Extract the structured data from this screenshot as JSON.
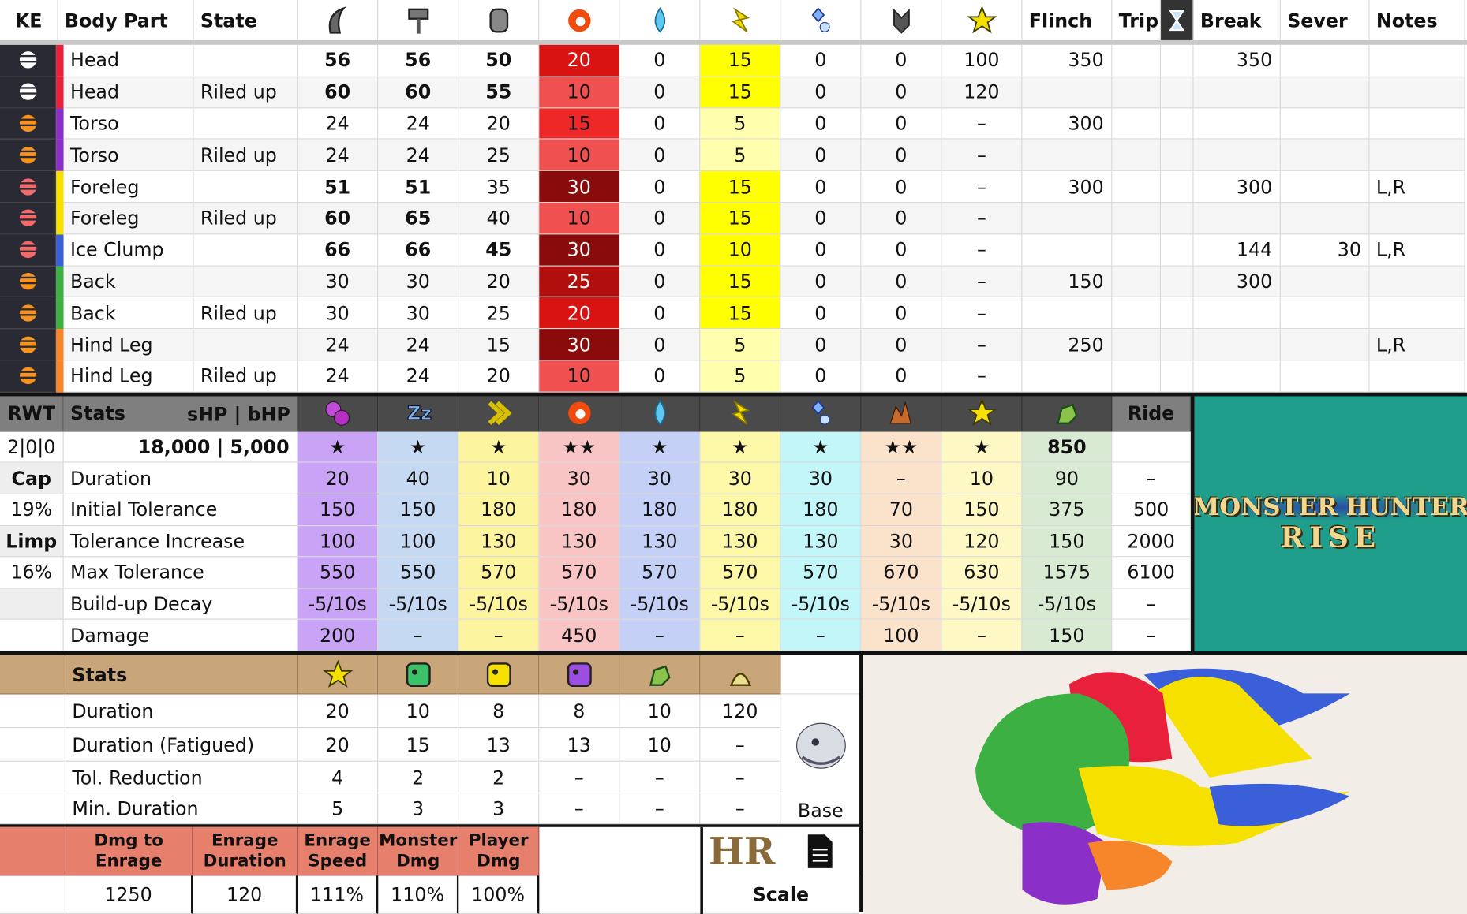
{
  "header": {
    "ke": "KE",
    "body_part": "Body Part",
    "state": "State",
    "flinch": "Flinch",
    "trip": "Trip",
    "break": "Break",
    "sever": "Sever",
    "notes": "Notes"
  },
  "hitzones": {
    "rows": [
      {
        "part": "Head",
        "state": null,
        "color": "#e8203c",
        "ke_color": "#ffffff",
        "hz": [
          56,
          56,
          50,
          20,
          0,
          15,
          0,
          0,
          100
        ],
        "flinch": 350,
        "break": 350,
        "sever": null,
        "notes": null
      },
      {
        "part": "Head",
        "state": "Riled up",
        "color": "#e8203c",
        "ke_color": "#ffffff",
        "hz": [
          60,
          60,
          55,
          10,
          0,
          15,
          0,
          0,
          120
        ],
        "flinch": null,
        "break": null,
        "sever": null,
        "notes": null
      },
      {
        "part": "Torso",
        "state": null,
        "color": "#8b2fc9",
        "ke_color": "#f7931e",
        "hz": [
          24,
          24,
          20,
          15,
          0,
          5,
          0,
          0,
          "–"
        ],
        "flinch": 300,
        "break": null,
        "sever": null,
        "notes": null
      },
      {
        "part": "Torso",
        "state": "Riled up",
        "color": "#8b2fc9",
        "ke_color": "#f7931e",
        "hz": [
          24,
          24,
          25,
          10,
          0,
          5,
          0,
          0,
          "–"
        ],
        "flinch": null,
        "break": null,
        "sever": null,
        "notes": null
      },
      {
        "part": "Foreleg",
        "state": null,
        "color": "#f5e000",
        "ke_color": "#f26a6a",
        "hz": [
          51,
          51,
          35,
          30,
          0,
          15,
          0,
          0,
          "–"
        ],
        "flinch": 300,
        "break": 300,
        "sever": null,
        "notes": "L,R"
      },
      {
        "part": "Foreleg",
        "state": "Riled up",
        "color": "#f5e000",
        "ke_color": "#f26a6a",
        "hz": [
          60,
          65,
          40,
          10,
          0,
          15,
          0,
          0,
          "–"
        ],
        "flinch": null,
        "break": null,
        "sever": null,
        "notes": null
      },
      {
        "part": "Ice Clump",
        "state": null,
        "color": "#3a5fd9",
        "ke_color": "#f26a6a",
        "hz": [
          66,
          66,
          45,
          30,
          0,
          10,
          0,
          0,
          "–"
        ],
        "flinch": null,
        "break": 144,
        "sever": 30,
        "notes": "L,R"
      },
      {
        "part": "Back",
        "state": null,
        "color": "#3cb043",
        "ke_color": "#f7931e",
        "hz": [
          30,
          30,
          20,
          25,
          0,
          15,
          0,
          0,
          "–"
        ],
        "flinch": 150,
        "break": 300,
        "sever": null,
        "notes": null
      },
      {
        "part": "Back",
        "state": "Riled up",
        "color": "#3cb043",
        "ke_color": "#f7931e",
        "hz": [
          30,
          30,
          25,
          20,
          0,
          15,
          0,
          0,
          "–"
        ],
        "flinch": null,
        "break": null,
        "sever": null,
        "notes": null
      },
      {
        "part": "Hind Leg",
        "state": null,
        "color": "#f7862a",
        "ke_color": "#f7931e",
        "hz": [
          24,
          24,
          15,
          30,
          0,
          5,
          0,
          0,
          "–"
        ],
        "flinch": 250,
        "break": null,
        "sever": null,
        "notes": "L,R"
      },
      {
        "part": "Hind Leg",
        "state": "Riled up",
        "color": "#f7862a",
        "ke_color": "#f7931e",
        "hz": [
          24,
          24,
          20,
          10,
          0,
          5,
          0,
          0,
          "–"
        ],
        "flinch": null,
        "break": null,
        "sever": null,
        "notes": null
      }
    ]
  },
  "ailments": {
    "rwt": "RWT",
    "stats": "Stats",
    "hp_header": "sHP  |  bHP",
    "ride": "Ride",
    "column_colors": [
      "#c9a3f5",
      "#c6d9f3",
      "#fdf4a0",
      "#f8c4c4",
      "#c5d0f7",
      "#fdf7a8",
      "#c2f6f8",
      "#fbe3cb",
      "#fdf8c4",
      "#d9ead3"
    ],
    "rows": [
      {
        "left": "2|0|0",
        "label": "18,000 | 5,000",
        "cells": [
          "★",
          "★",
          "★",
          "★★",
          "★",
          "★",
          "★",
          "★★",
          "★",
          850,
          null
        ]
      },
      {
        "left": "Cap",
        "label": "Duration",
        "cells": [
          20,
          40,
          10,
          30,
          30,
          30,
          30,
          "–",
          10,
          90,
          "–"
        ]
      },
      {
        "left": "19%",
        "label": "Initial Tolerance",
        "cells": [
          150,
          150,
          180,
          180,
          180,
          180,
          180,
          70,
          150,
          375,
          500
        ]
      },
      {
        "left": "Limp",
        "label": "Tolerance Increase",
        "cells": [
          100,
          100,
          130,
          130,
          130,
          130,
          130,
          30,
          120,
          150,
          2000
        ]
      },
      {
        "left": "16%",
        "label": "Max Tolerance",
        "cells": [
          550,
          550,
          570,
          570,
          570,
          570,
          570,
          670,
          630,
          1575,
          6100
        ]
      },
      {
        "left": null,
        "label": "Build-up Decay",
        "cells": [
          "-5/10s",
          "-5/10s",
          "-5/10s",
          "-5/10s",
          "-5/10s",
          "-5/10s",
          "-5/10s",
          "-5/10s",
          "-5/10s",
          "-5/10s",
          "–"
        ]
      },
      {
        "left": null,
        "label": "Damage",
        "cells": [
          200,
          "–",
          "–",
          450,
          "–",
          "–",
          "–",
          100,
          "–",
          150,
          "–"
        ]
      }
    ]
  },
  "logo": {
    "line1": "MONSTER HUNTER",
    "line2": "RISE"
  },
  "status": {
    "stats": "Stats",
    "base": "Base",
    "rows": [
      {
        "label": "Duration",
        "cells": [
          20,
          10,
          8,
          8,
          10,
          120
        ]
      },
      {
        "label": "Duration (Fatigued)",
        "cells": [
          20,
          15,
          13,
          13,
          10,
          "–"
        ]
      },
      {
        "label": "Tol. Reduction",
        "cells": [
          4,
          2,
          2,
          "–",
          "–",
          "–"
        ]
      },
      {
        "label": "Min. Duration",
        "cells": [
          5,
          3,
          3,
          "–",
          "–",
          "–"
        ]
      }
    ]
  },
  "enrage": {
    "headers": [
      "Dmg to Enrage",
      "Enrage Duration",
      "Enrage Speed",
      "Monster Dmg",
      "Player Dmg"
    ],
    "values": [
      1250,
      120,
      "111%",
      "110%",
      "100%"
    ]
  },
  "hr": {
    "logo": "HR",
    "scale": "Scale"
  }
}
